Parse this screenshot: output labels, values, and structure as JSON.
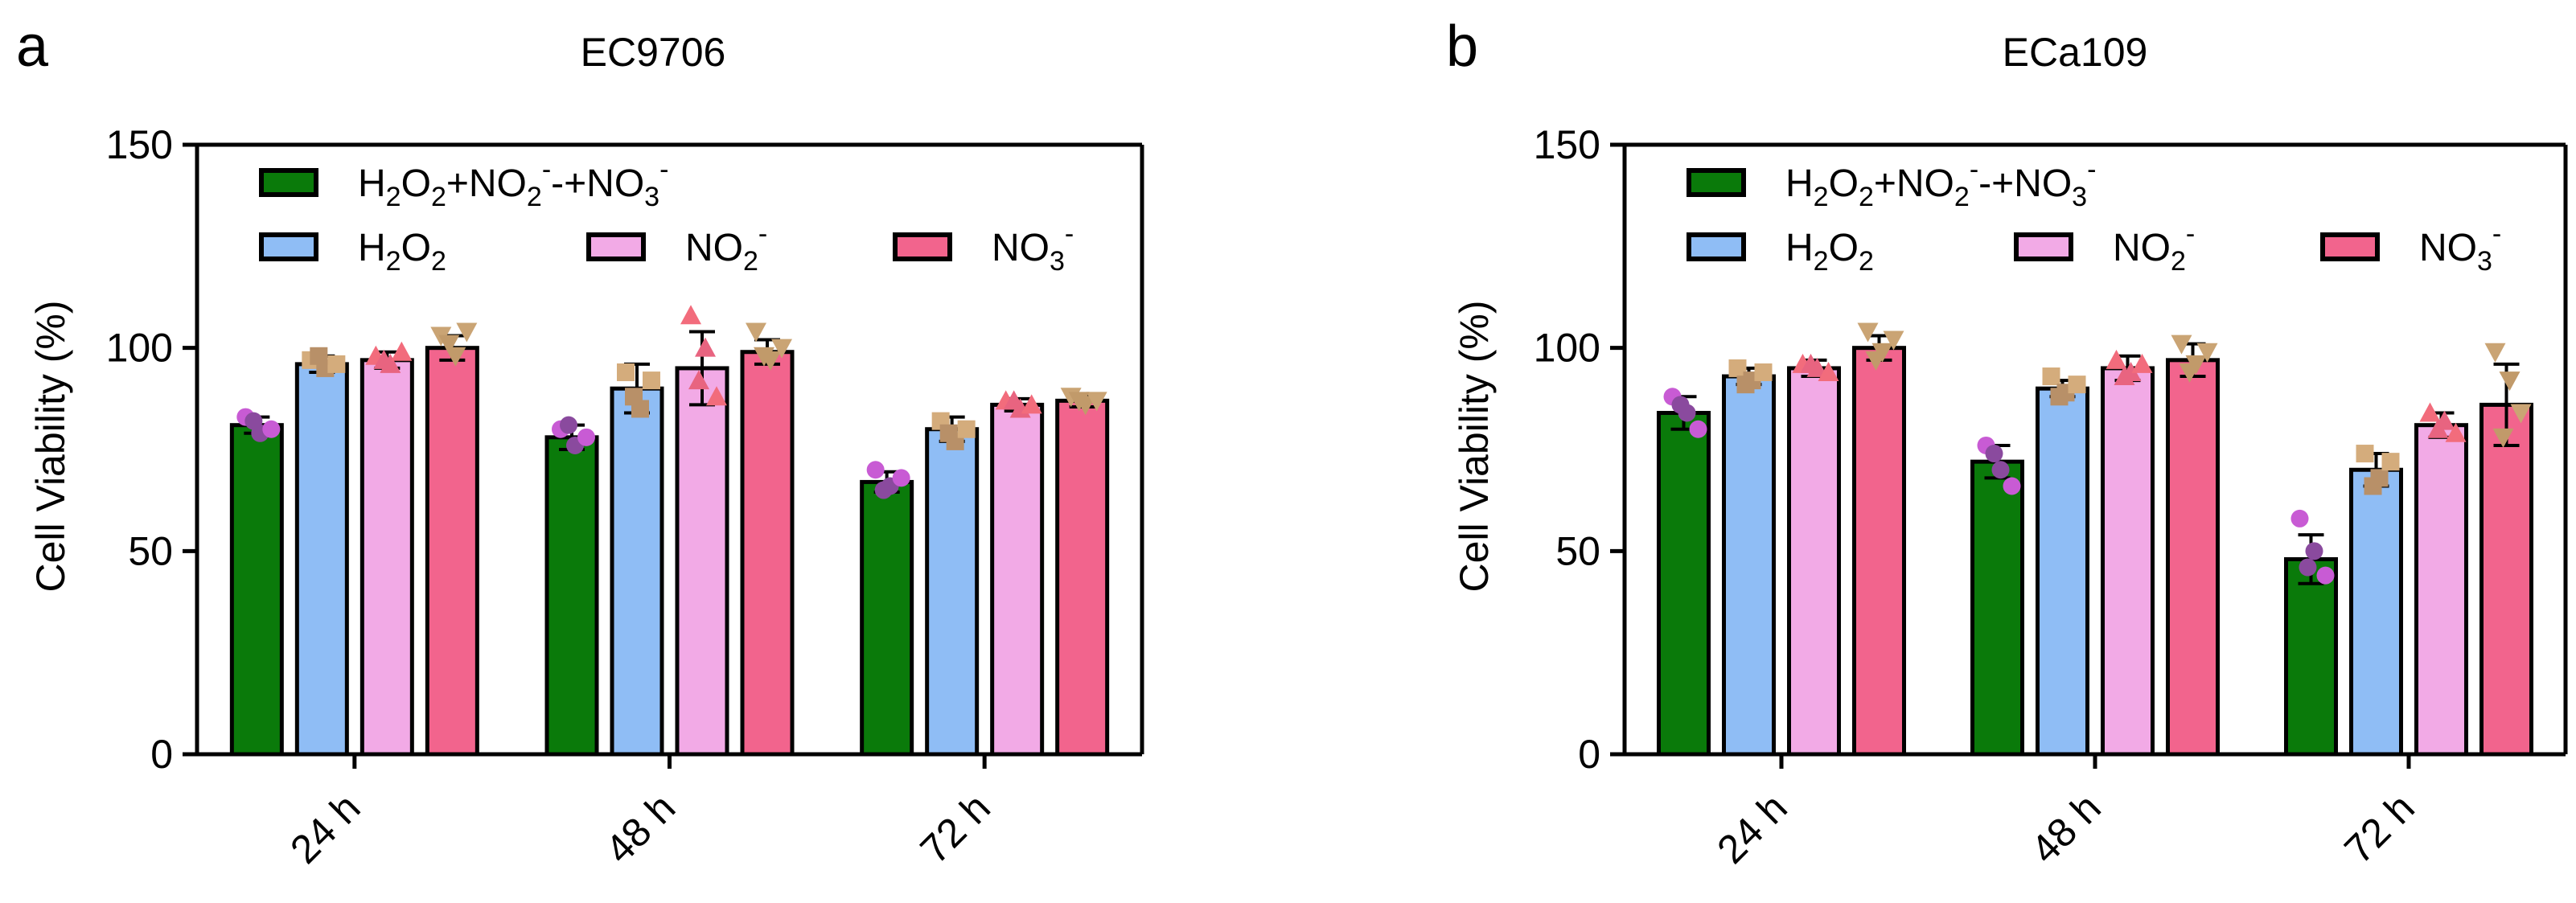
{
  "chart_data": [
    {
      "panel_label": "a",
      "title": "EC9706",
      "type": "bar",
      "ylabel": "Cell Viability (%)",
      "xlabel": "",
      "ylim": [
        0,
        150
      ],
      "yticks": [
        "0",
        "50",
        "100",
        "150"
      ],
      "categories": [
        "24 h",
        "48 h",
        "72 h"
      ],
      "series": [
        {
          "name": "H2O2+NO2--+NO3-",
          "values": [
            81,
            78,
            67
          ],
          "errors": [
            2,
            3,
            2.5
          ],
          "points": [
            [
              83,
              79,
              80,
              82
            ],
            [
              80,
              76,
              78,
              81
            ],
            [
              70,
              66,
              68,
              65
            ]
          ]
        },
        {
          "name": "H2O2",
          "values": [
            96,
            90,
            80
          ],
          "errors": [
            2,
            6,
            3
          ],
          "points": [
            [
              97,
              95,
              96,
              98
            ],
            [
              94,
              85,
              92,
              88
            ],
            [
              82,
              77,
              80,
              79
            ]
          ]
        },
        {
          "name": "NO2-",
          "values": [
            97,
            95,
            86
          ],
          "errors": [
            2,
            9,
            1.5
          ],
          "points": [
            [
              98,
              96,
              99,
              97
            ],
            [
              108,
              100,
              88,
              92
            ],
            [
              87,
              85,
              86,
              87
            ]
          ]
        },
        {
          "name": "NO3-",
          "values": [
            100,
            99,
            87
          ],
          "errors": [
            3,
            3,
            1.5
          ],
          "points": [
            [
              103,
              98,
              104,
              101
            ],
            [
              104,
              97,
              100,
              98
            ],
            [
              88,
              86,
              87,
              87
            ]
          ]
        }
      ]
    },
    {
      "panel_label": "b",
      "title": "ECa109",
      "type": "bar",
      "ylabel": "Cell Viability (%)",
      "xlabel": "",
      "ylim": [
        0,
        150
      ],
      "yticks": [
        "0",
        "50",
        "100",
        "150"
      ],
      "categories": [
        "24 h",
        "48 h",
        "72 h"
      ],
      "series": [
        {
          "name": "H2O2+NO2--+NO3-",
          "values": [
            84,
            72,
            48
          ],
          "errors": [
            4,
            4,
            6
          ],
          "points": [
            [
              88,
              84,
              80,
              86
            ],
            [
              76,
              70,
              66,
              74
            ],
            [
              58,
              50,
              44,
              46
            ]
          ]
        },
        {
          "name": "H2O2",
          "values": [
            93,
            90,
            70
          ],
          "errors": [
            2,
            2,
            4
          ],
          "points": [
            [
              95,
              92,
              94,
              91
            ],
            [
              93,
              89,
              91,
              88
            ],
            [
              74,
              68,
              72,
              66
            ]
          ]
        },
        {
          "name": "NO2-",
          "values": [
            95,
            95,
            81
          ],
          "errors": [
            2,
            3,
            3
          ],
          "points": [
            [
              96,
              95,
              94,
              96
            ],
            [
              97,
              94,
              96,
              93
            ],
            [
              84,
              82,
              79,
              80
            ]
          ]
        },
        {
          "name": "NO3-",
          "values": [
            100,
            97,
            86
          ],
          "errors": [
            3,
            4,
            10
          ],
          "points": [
            [
              104,
              99,
              102,
              97
            ],
            [
              101,
              96,
              99,
              94
            ],
            [
              99,
              92,
              84,
              78
            ]
          ]
        }
      ]
    }
  ],
  "legend": {
    "items": [
      {
        "base": "H",
        "parts": [
          [
            "2",
            "sub"
          ],
          [
            "O",
            ""
          ],
          [
            "2",
            "sub"
          ],
          [
            "+NO",
            ""
          ],
          [
            "2",
            "sub"
          ],
          [
            "-",
            "sup"
          ],
          [
            "-+NO",
            ""
          ],
          [
            "3",
            "sub"
          ],
          [
            "-",
            "sup"
          ]
        ]
      },
      {
        "base": "H",
        "parts": [
          [
            "2",
            "sub"
          ],
          [
            "O",
            ""
          ],
          [
            "2",
            "sub"
          ]
        ]
      },
      {
        "base": "NO",
        "parts": [
          [
            "2",
            "sub"
          ],
          [
            "-",
            "sup"
          ]
        ]
      },
      {
        "base": "NO",
        "parts": [
          [
            "3",
            "sub"
          ],
          [
            "-",
            "sup"
          ]
        ]
      }
    ]
  },
  "colors": {
    "bars": [
      "#0a7a0a",
      "#8fbdf5",
      "#f2aae6",
      "#f2648d"
    ],
    "points": [
      "#c85bd4",
      "#d4ac7c",
      "#f26c7c",
      "#caa474"
    ],
    "points_alt": [
      "#8a4a9e",
      "#b89068",
      "#e86480",
      "#c19a6a"
    ],
    "axis": "#000000"
  }
}
